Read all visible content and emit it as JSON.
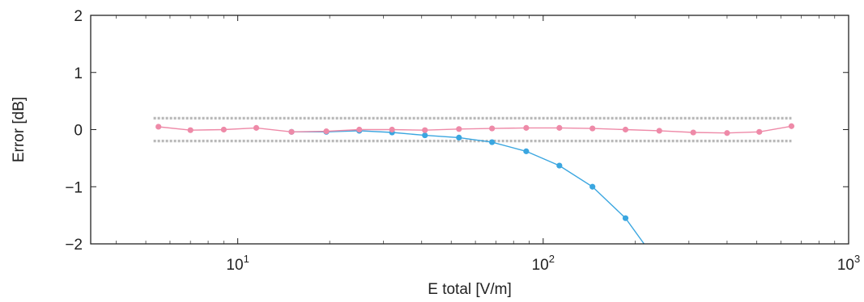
{
  "chart_data": {
    "type": "line",
    "xlabel": "E total [V/m]",
    "ylabel": "Error [dB]",
    "x_scale": "log",
    "xlim": [
      3.3,
      1000
    ],
    "ylim": [
      -2,
      2
    ],
    "x_ticks": [
      {
        "value": 10,
        "base": "10",
        "exp": "1"
      },
      {
        "value": 100,
        "base": "10",
        "exp": "2"
      },
      {
        "value": 1000,
        "base": "10",
        "exp": "3"
      }
    ],
    "y_ticks": [
      {
        "value": 2,
        "label": "2"
      },
      {
        "value": 1,
        "label": "1"
      },
      {
        "value": 0,
        "label": "0"
      },
      {
        "value": -1,
        "label": "−1"
      },
      {
        "value": -2,
        "label": "−2"
      }
    ],
    "grid": false,
    "tolerance_band": {
      "upper": 0.2,
      "lower": -0.2,
      "x_range": [
        5.3,
        650
      ],
      "color": "#b9b9b9"
    },
    "series": [
      {
        "color": "#ee8aa8",
        "points": [
          [
            5.5,
            0.05
          ],
          [
            7.0,
            -0.01
          ],
          [
            9.0,
            0.0
          ],
          [
            11.5,
            0.03
          ],
          [
            15.0,
            -0.04
          ],
          [
            19.5,
            -0.03
          ],
          [
            25.0,
            0.0
          ],
          [
            32.0,
            0.0
          ],
          [
            41.0,
            -0.01
          ],
          [
            53.0,
            0.01
          ],
          [
            68.0,
            0.02
          ],
          [
            88.0,
            0.03
          ],
          [
            113.0,
            0.03
          ],
          [
            145.0,
            0.02
          ],
          [
            186.0,
            0.0
          ],
          [
            240.0,
            -0.02
          ],
          [
            310.0,
            -0.05
          ],
          [
            400.0,
            -0.06
          ],
          [
            510.0,
            -0.04
          ],
          [
            650.0,
            0.06
          ]
        ]
      },
      {
        "color": "#3aa6e0",
        "points": [
          [
            15.0,
            -0.04
          ],
          [
            19.5,
            -0.04
          ],
          [
            25.0,
            -0.02
          ],
          [
            32.0,
            -0.05
          ],
          [
            41.0,
            -0.1
          ],
          [
            53.0,
            -0.14
          ],
          [
            68.0,
            -0.22
          ],
          [
            88.0,
            -0.38
          ],
          [
            113.0,
            -0.63
          ],
          [
            145.0,
            -1.0
          ],
          [
            186.0,
            -1.55
          ],
          [
            214.0,
            -2.0
          ]
        ]
      }
    ]
  }
}
